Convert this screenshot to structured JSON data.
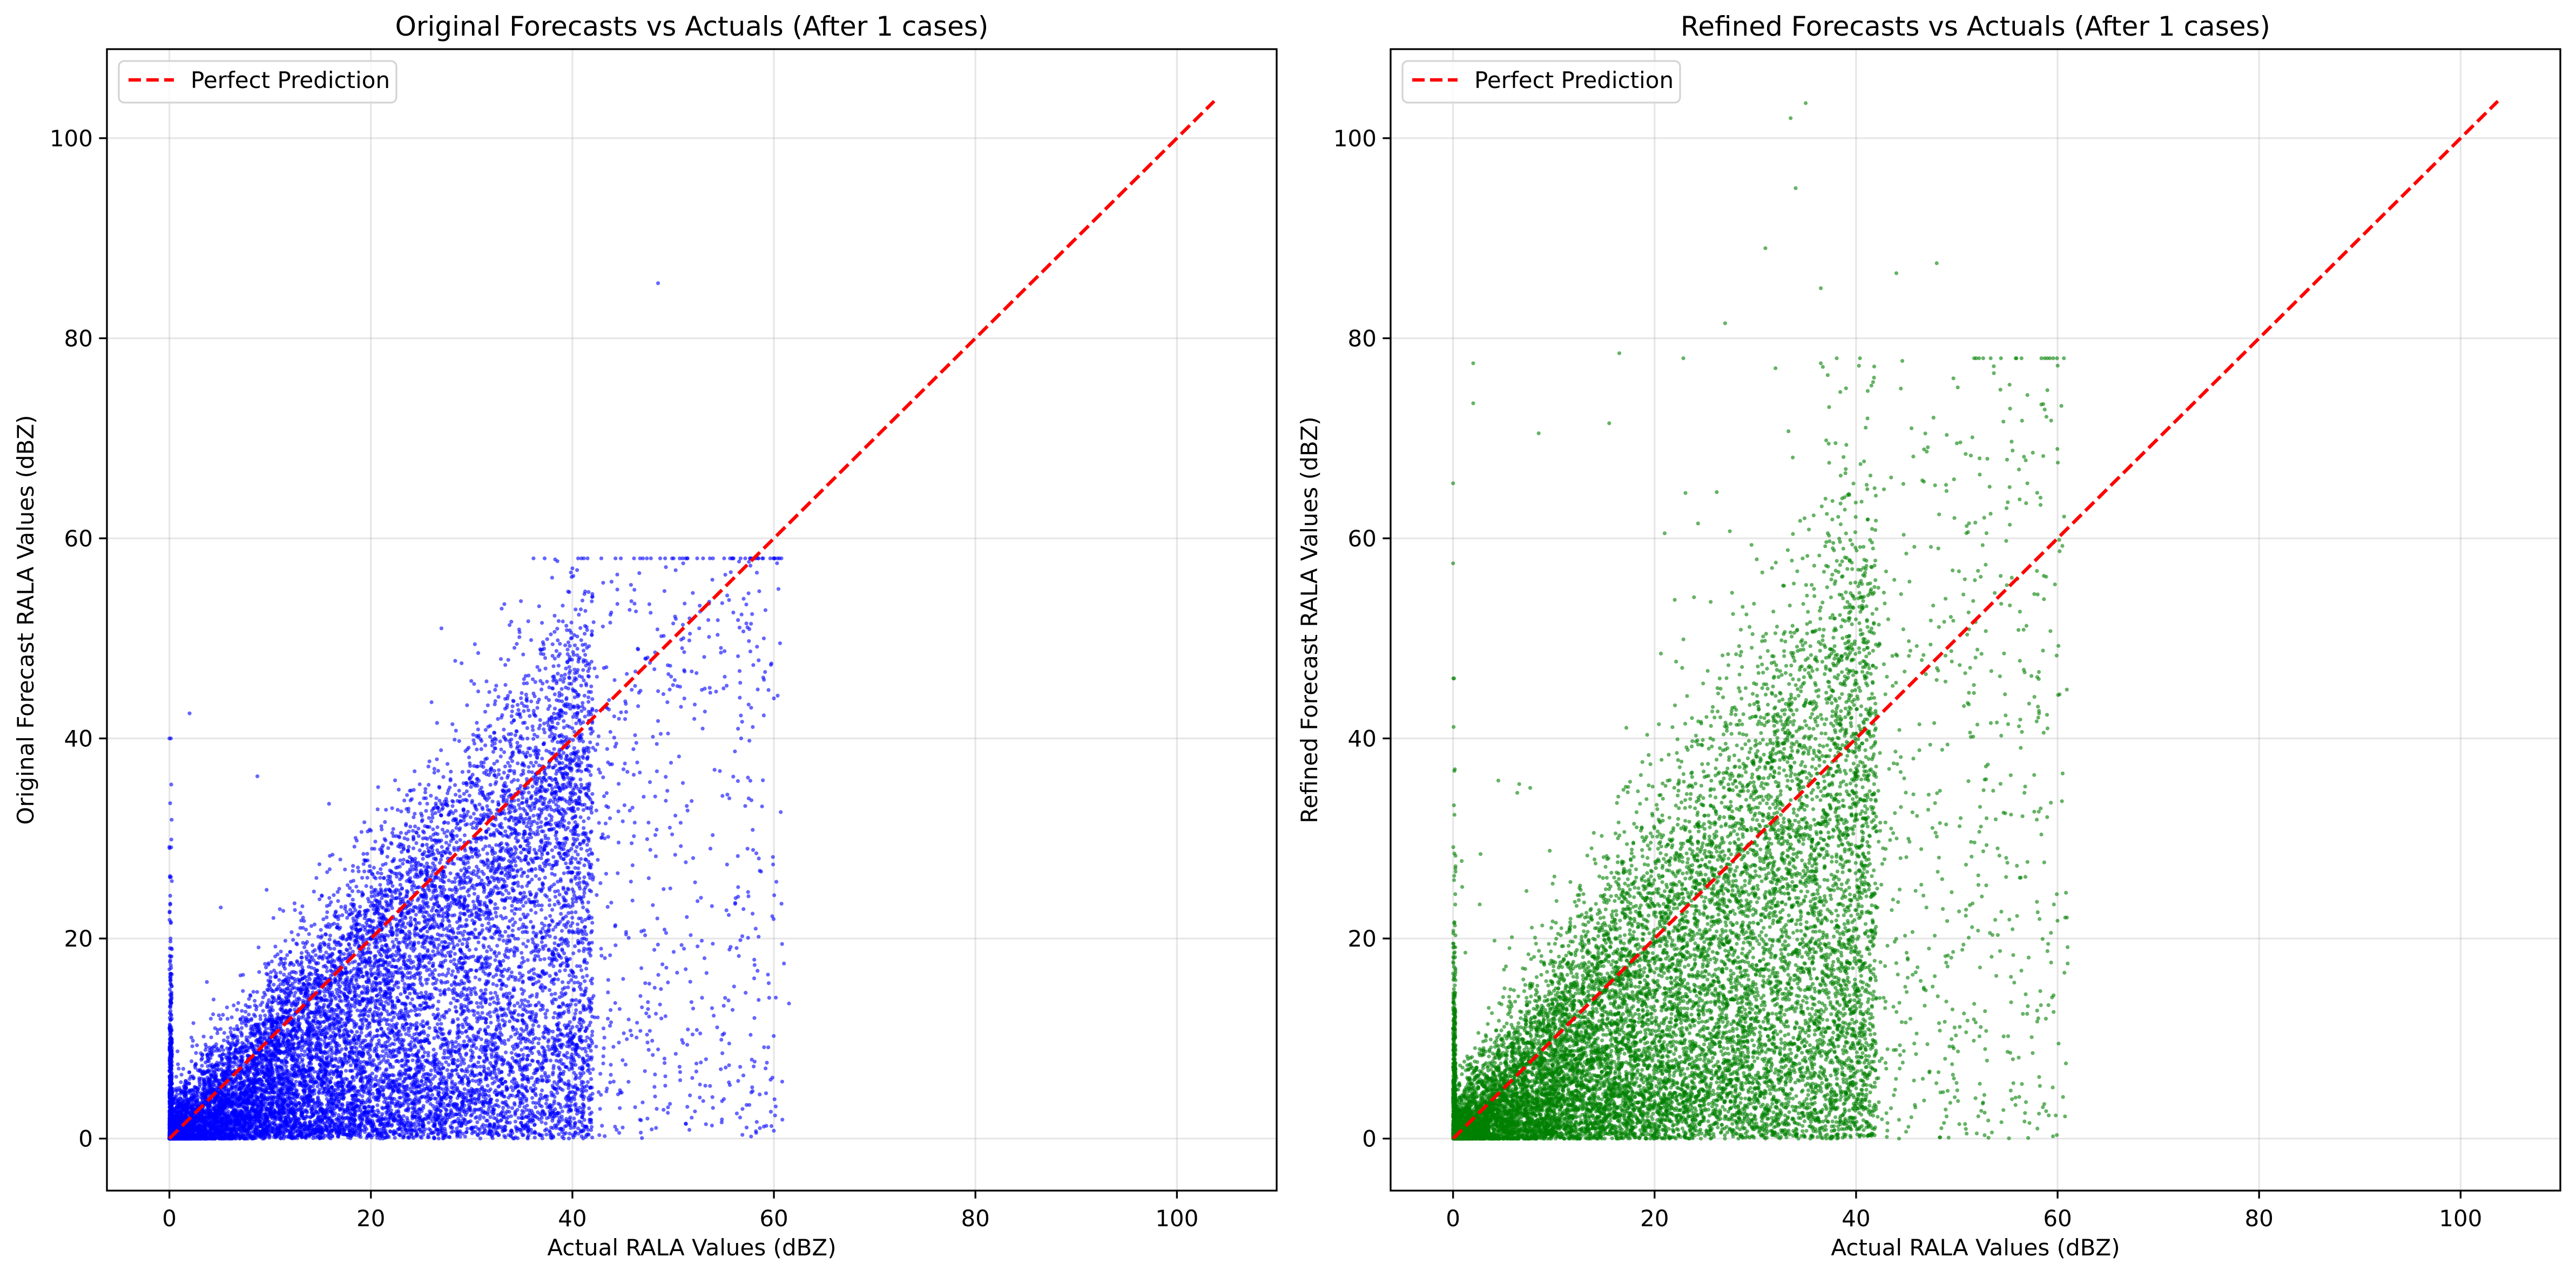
{
  "chart_data": [
    {
      "type": "scatter",
      "title": "Original Forecasts vs Actuals (After 1 cases)",
      "xlabel": "Actual RALA Values (dBZ)",
      "ylabel": "Original Forecast RALA Values (dBZ)",
      "xlim": [
        -6.2,
        109.9
      ],
      "ylim": [
        -5.2,
        108.9
      ],
      "xticks": [
        0,
        20,
        40,
        60,
        80,
        100
      ],
      "yticks": [
        0,
        20,
        40,
        60,
        80,
        100
      ],
      "grid": true,
      "legend": {
        "position": "top-left",
        "entries": [
          "Perfect Prediction"
        ]
      },
      "reference_line": {
        "label": "Perfect Prediction",
        "from": [
          0,
          0
        ],
        "to": [
          103.7,
          103.7
        ],
        "color": "#ff0000",
        "style": "dashed"
      },
      "series": {
        "name": "Original forecasts",
        "color": "#0000ff",
        "alpha": 0.6,
        "approx_distribution": {
          "n": 14000,
          "dense_x_max": 42,
          "tail_x_max": 61,
          "diag_fraction": 0.5,
          "slope": 0.92,
          "spread": 0.11,
          "low_fraction": 0.5,
          "zero_column_fraction": 0.04,
          "zero_column_ymax": 40,
          "y_max": 58,
          "seed": 7
        },
        "notable_points": [
          [
            48.5,
            85.5
          ],
          [
            0,
            40
          ],
          [
            2,
            42.5
          ],
          [
            27,
            51
          ],
          [
            40,
            57
          ],
          [
            47,
            58
          ],
          [
            51,
            57.5
          ],
          [
            56,
            58
          ],
          [
            59,
            50
          ],
          [
            60,
            44
          ],
          [
            61,
            17.5
          ],
          [
            61.5,
            13.5
          ],
          [
            59,
            1.2
          ],
          [
            57.5,
            34
          ],
          [
            58.5,
            28
          ],
          [
            55,
            45
          ]
        ]
      }
    },
    {
      "type": "scatter",
      "title": "Refined Forecasts vs Actuals (After 1 cases)",
      "xlabel": "Actual RALA Values (dBZ)",
      "ylabel": "Refined Forecast RALA Values (dBZ)",
      "xlim": [
        -6.2,
        109.9
      ],
      "ylim": [
        -5.2,
        108.9
      ],
      "xticks": [
        0,
        20,
        40,
        60,
        80,
        100
      ],
      "yticks": [
        0,
        20,
        40,
        60,
        80,
        100
      ],
      "grid": true,
      "legend": {
        "position": "top-left",
        "entries": [
          "Perfect Prediction"
        ]
      },
      "reference_line": {
        "label": "Perfect Prediction",
        "from": [
          0,
          0
        ],
        "to": [
          103.7,
          103.7
        ],
        "color": "#ff0000",
        "style": "dashed"
      },
      "series": {
        "name": "Refined forecasts",
        "color": "#008000",
        "alpha": 0.6,
        "approx_distribution": {
          "n": 14000,
          "dense_x_max": 42,
          "tail_x_max": 61,
          "diag_fraction": 0.55,
          "slope": 0.95,
          "spread": 0.2,
          "low_fraction": 0.45,
          "zero_column_fraction": 0.04,
          "zero_column_ymax": 46,
          "y_max": 78,
          "seed": 11
        },
        "notable_points": [
          [
            33.5,
            102
          ],
          [
            35,
            103.5
          ],
          [
            34,
            95
          ],
          [
            31,
            89
          ],
          [
            36.5,
            85
          ],
          [
            44,
            86.5
          ],
          [
            48,
            87.5
          ],
          [
            2,
            77.5
          ],
          [
            2,
            73.5
          ],
          [
            16.5,
            78.5
          ],
          [
            27,
            81.5
          ],
          [
            8.5,
            70.5
          ],
          [
            0,
            65.5
          ],
          [
            0,
            57.5
          ],
          [
            36.5,
            77.5
          ],
          [
            32,
            77
          ],
          [
            39,
            75
          ],
          [
            45.5,
            71
          ],
          [
            50,
            69.5
          ],
          [
            57,
            65.5
          ],
          [
            61,
            17.5
          ],
          [
            60.5,
            36.5
          ],
          [
            59,
            41
          ],
          [
            58,
            1
          ],
          [
            21,
            60.5
          ],
          [
            15.5,
            71.5
          ]
        ]
      }
    }
  ]
}
